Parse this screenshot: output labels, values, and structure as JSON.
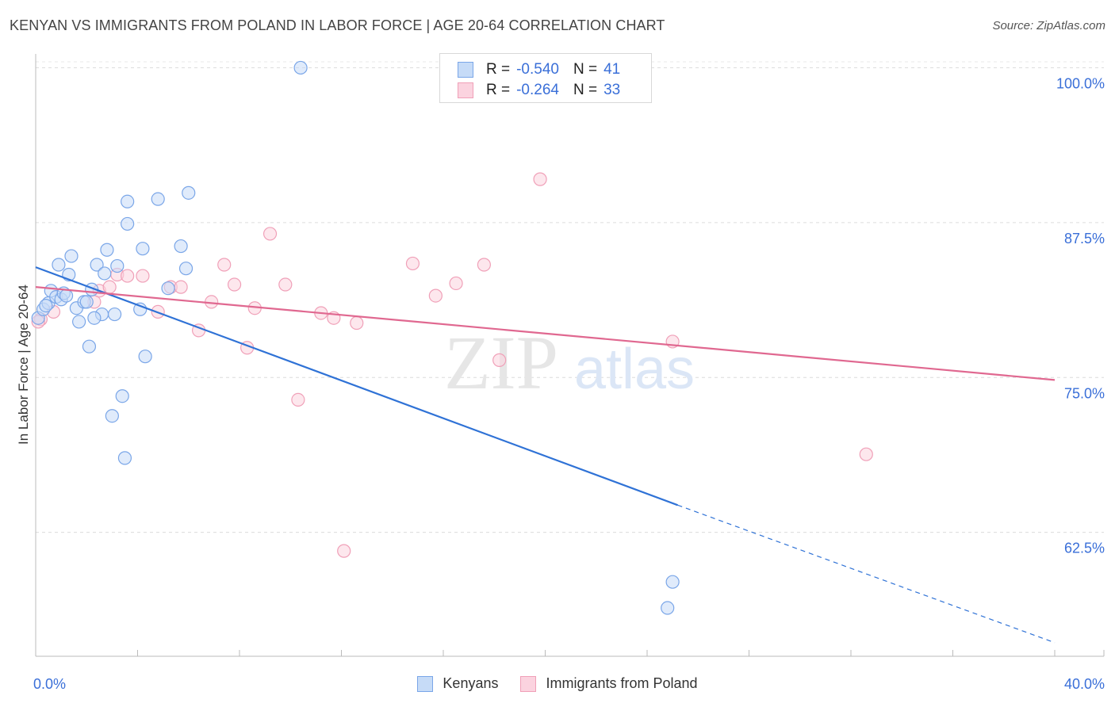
{
  "title": "KENYAN VS IMMIGRANTS FROM POLAND IN LABOR FORCE | AGE 20-64 CORRELATION CHART",
  "source": "Source: ZipAtlas.com",
  "legend": {
    "r_label": "R =",
    "n_label": "N =",
    "rows": [
      {
        "r": "-0.540",
        "n": "41",
        "color": "#7aa6e8"
      },
      {
        "r": "-0.264",
        "n": "33",
        "color": "#f0a0b8"
      }
    ]
  },
  "watermark": {
    "zip": "ZIP",
    "atlas": "atlas"
  },
  "chart_data": {
    "type": "scatter",
    "title": "KENYAN VS IMMIGRANTS FROM POLAND IN LABOR FORCE | AGE 20-64 CORRELATION CHART",
    "xlabel": "",
    "ylabel": "In Labor Force | Age 20-64",
    "xlim": [
      0,
      40
    ],
    "ylim": [
      52.5,
      101.5
    ],
    "x_tick_labels": [
      "0.0%",
      "40.0%"
    ],
    "y_ticks": [
      62.5,
      75.0,
      87.5,
      100.0
    ],
    "y_tick_labels": [
      "62.5%",
      "75.0%",
      "87.5%",
      "100.0%"
    ],
    "grid": true,
    "legend_position": "top-center",
    "series": [
      {
        "name": "Kenyans",
        "color": "#7aa6e8",
        "line_color": "#2f72d6",
        "trend": {
          "x0": 0.0,
          "y0": 83.9,
          "x1": 25.2,
          "y1": 64.7,
          "dash_to_x": 40.0,
          "dash_to_y": 53.6
        },
        "points": [
          [
            0.1,
            79.8
          ],
          [
            0.3,
            80.5
          ],
          [
            0.5,
            81.0
          ],
          [
            0.6,
            82.0
          ],
          [
            0.8,
            81.5
          ],
          [
            0.9,
            84.1
          ],
          [
            1.0,
            81.3
          ],
          [
            1.1,
            81.8
          ],
          [
            1.3,
            83.3
          ],
          [
            1.4,
            84.8
          ],
          [
            1.6,
            80.6
          ],
          [
            1.7,
            79.5
          ],
          [
            1.9,
            81.1
          ],
          [
            2.1,
            77.5
          ],
          [
            2.2,
            82.1
          ],
          [
            2.4,
            84.1
          ],
          [
            2.6,
            80.1
          ],
          [
            2.7,
            83.4
          ],
          [
            2.8,
            85.3
          ],
          [
            3.1,
            80.1
          ],
          [
            3.2,
            84.0
          ],
          [
            3.4,
            73.5
          ],
          [
            3.5,
            68.5
          ],
          [
            3.6,
            89.2
          ],
          [
            3.6,
            87.4
          ],
          [
            3.0,
            71.9
          ],
          [
            4.1,
            80.5
          ],
          [
            4.2,
            85.4
          ],
          [
            4.3,
            76.7
          ],
          [
            4.8,
            89.4
          ],
          [
            5.2,
            82.2
          ],
          [
            5.7,
            85.6
          ],
          [
            5.9,
            83.8
          ],
          [
            6.0,
            89.9
          ],
          [
            10.4,
            100.0
          ],
          [
            25.0,
            58.5
          ],
          [
            24.8,
            56.4
          ],
          [
            2.0,
            81.1
          ],
          [
            0.4,
            80.8
          ],
          [
            1.2,
            81.6
          ],
          [
            2.3,
            79.8
          ]
        ]
      },
      {
        "name": "Immigrants from Poland",
        "color": "#f0a0b8",
        "line_color": "#e06890",
        "trend": {
          "x0": 0.0,
          "y0": 82.3,
          "x1": 40.0,
          "y1": 74.8
        },
        "points": [
          [
            0.2,
            79.7
          ],
          [
            0.7,
            80.3
          ],
          [
            2.3,
            81.1
          ],
          [
            2.5,
            82.0
          ],
          [
            2.9,
            82.3
          ],
          [
            3.2,
            83.3
          ],
          [
            3.6,
            83.2
          ],
          [
            4.2,
            83.2
          ],
          [
            4.8,
            80.3
          ],
          [
            5.3,
            82.3
          ],
          [
            5.7,
            82.3
          ],
          [
            6.4,
            78.8
          ],
          [
            6.9,
            81.1
          ],
          [
            7.4,
            84.1
          ],
          [
            7.8,
            82.5
          ],
          [
            8.3,
            77.4
          ],
          [
            8.6,
            80.6
          ],
          [
            9.2,
            86.6
          ],
          [
            9.8,
            82.5
          ],
          [
            10.3,
            73.2
          ],
          [
            11.2,
            80.2
          ],
          [
            11.7,
            79.8
          ],
          [
            12.1,
            61.0
          ],
          [
            12.6,
            79.4
          ],
          [
            14.8,
            84.2
          ],
          [
            15.7,
            81.6
          ],
          [
            16.5,
            82.6
          ],
          [
            17.6,
            84.1
          ],
          [
            18.2,
            76.4
          ],
          [
            19.8,
            91.0
          ],
          [
            25.0,
            77.9
          ],
          [
            32.6,
            68.8
          ],
          [
            0.1,
            79.5
          ]
        ]
      }
    ]
  }
}
